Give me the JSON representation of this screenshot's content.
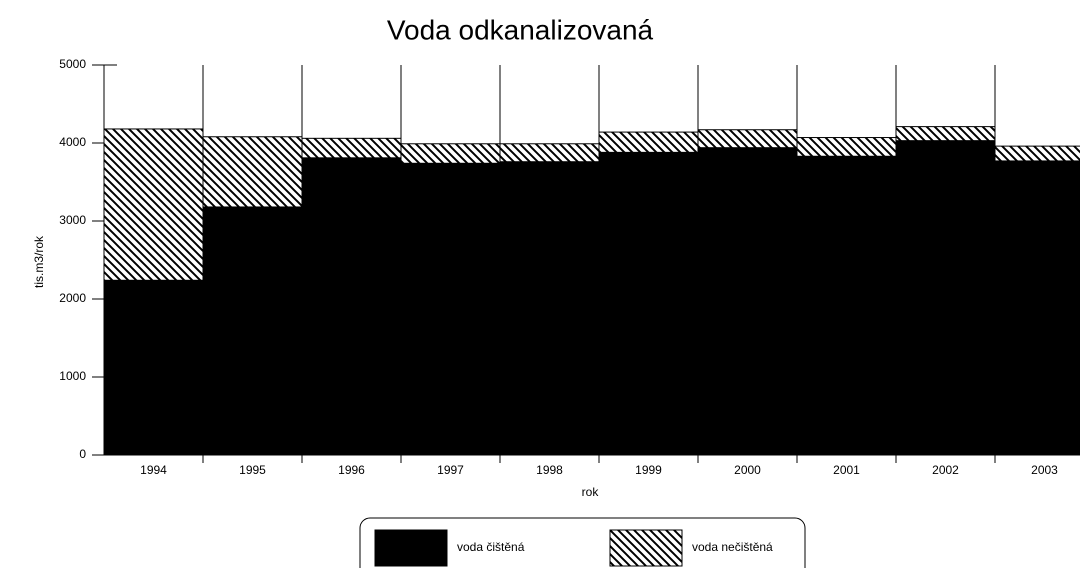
{
  "chart_data": {
    "type": "stacked_bar",
    "title": "Voda odkanalizovaná",
    "x_label": "rok",
    "y_label": "tis.m3/rok",
    "categories": [
      "1994",
      "1995",
      "1996",
      "1997",
      "1998",
      "1999",
      "2000",
      "2001",
      "2002",
      "2003"
    ],
    "series": [
      {
        "name": "voda čištěná",
        "color": "#000000",
        "pattern": "solid",
        "values": [
          2240,
          3180,
          3810,
          3740,
          3760,
          3880,
          3940,
          3830,
          4030,
          3770
        ]
      },
      {
        "name": "voda nečištěná",
        "color": "#000000",
        "pattern": "diagonal-hatch",
        "values": [
          1940,
          900,
          250,
          250,
          230,
          260,
          230,
          240,
          180,
          190
        ]
      }
    ],
    "ylim": [
      0,
      5000
    ],
    "yticks": [
      0,
      1000,
      2000,
      3000,
      4000,
      5000
    ],
    "legend": "bottom"
  }
}
